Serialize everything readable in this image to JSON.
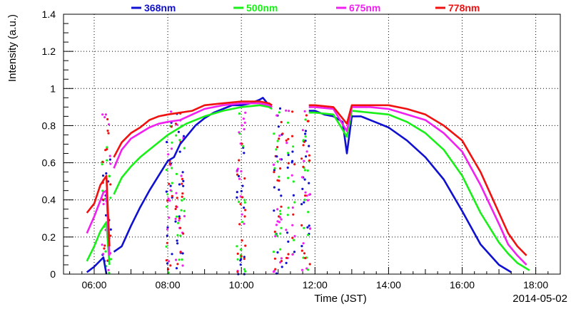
{
  "chart_data": {
    "type": "line",
    "xlabel": "Time (JST)",
    "ylabel": "Intensity (a.u.)",
    "date_label": "2014-05-02",
    "xlim": [
      "05:10",
      "18:40"
    ],
    "ylim": [
      0,
      1.4
    ],
    "grid": true,
    "legend_position": "top",
    "x_ticks": [
      "06:00",
      "08:00",
      "10:00",
      "12:00",
      "14:00",
      "16:00",
      "18:00"
    ],
    "y_ticks": [
      "0",
      "0.2",
      "0.4",
      "0.6",
      "0.8",
      "1",
      "1.2",
      "1.4"
    ],
    "series": [
      {
        "name": "368nm",
        "color": "#1010d0",
        "segments": [
          [
            [
              "05:48",
              0.01
            ],
            [
              "06:00",
              0.04
            ],
            [
              "06:15",
              0.09
            ],
            [
              "06:20",
              0.0
            ]
          ],
          [
            [
              "06:32",
              0.12
            ],
            [
              "06:45",
              0.15
            ],
            [
              "07:00",
              0.26
            ],
            [
              "07:15",
              0.36
            ],
            [
              "07:30",
              0.45
            ],
            [
              "07:45",
              0.53
            ],
            [
              "08:00",
              0.61
            ],
            [
              "08:10",
              0.63
            ],
            [
              "08:20",
              0.7
            ],
            [
              "08:30",
              0.74
            ],
            [
              "08:45",
              0.8
            ],
            [
              "09:00",
              0.84
            ],
            [
              "09:15",
              0.87
            ],
            [
              "09:30",
              0.89
            ],
            [
              "09:45",
              0.91
            ],
            [
              "10:00",
              0.91
            ],
            [
              "10:15",
              0.92
            ],
            [
              "10:30",
              0.94
            ],
            [
              "10:35",
              0.95
            ],
            [
              "10:45",
              0.91
            ],
            [
              "10:50",
              0.9
            ]
          ],
          [
            [
              "11:50",
              0.88
            ],
            [
              "12:00",
              0.88
            ],
            [
              "12:15",
              0.86
            ],
            [
              "12:30",
              0.85
            ],
            [
              "12:45",
              0.82
            ],
            [
              "12:52",
              0.65
            ],
            [
              "13:00",
              0.85
            ],
            [
              "13:15",
              0.85
            ],
            [
              "13:30",
              0.83
            ],
            [
              "14:00",
              0.79
            ],
            [
              "14:30",
              0.72
            ],
            [
              "15:00",
              0.63
            ],
            [
              "15:30",
              0.51
            ],
            [
              "16:00",
              0.34
            ],
            [
              "16:30",
              0.16
            ],
            [
              "17:00",
              0.05
            ],
            [
              "17:20",
              0.01
            ]
          ]
        ]
      },
      {
        "name": "500nm",
        "color": "#18f018",
        "segments": [
          [
            [
              "05:48",
              0.07
            ],
            [
              "06:00",
              0.15
            ],
            [
              "06:10",
              0.23
            ],
            [
              "06:20",
              0.28
            ],
            [
              "06:25",
              0.05
            ]
          ],
          [
            [
              "06:32",
              0.43
            ],
            [
              "06:45",
              0.52
            ],
            [
              "07:00",
              0.58
            ],
            [
              "07:15",
              0.63
            ],
            [
              "07:30",
              0.67
            ],
            [
              "07:45",
              0.71
            ],
            [
              "08:00",
              0.75
            ],
            [
              "08:10",
              0.77
            ],
            [
              "08:20",
              0.79
            ],
            [
              "08:30",
              0.81
            ],
            [
              "09:00",
              0.85
            ],
            [
              "09:30",
              0.88
            ],
            [
              "10:00",
              0.9
            ],
            [
              "10:30",
              0.91
            ],
            [
              "10:45",
              0.9
            ],
            [
              "10:50",
              0.89
            ]
          ],
          [
            [
              "11:50",
              0.87
            ],
            [
              "12:00",
              0.87
            ],
            [
              "12:30",
              0.86
            ],
            [
              "12:52",
              0.74
            ],
            [
              "13:00",
              0.88
            ],
            [
              "13:30",
              0.87
            ],
            [
              "14:00",
              0.86
            ],
            [
              "14:30",
              0.82
            ],
            [
              "15:00",
              0.76
            ],
            [
              "15:30",
              0.67
            ],
            [
              "16:00",
              0.53
            ],
            [
              "16:30",
              0.33
            ],
            [
              "17:00",
              0.17
            ],
            [
              "17:15",
              0.11
            ],
            [
              "17:30",
              0.06
            ],
            [
              "17:50",
              0.02
            ]
          ]
        ]
      },
      {
        "name": "675nm",
        "color": "#f020f0",
        "segments": [
          [
            [
              "05:48",
              0.22
            ],
            [
              "06:00",
              0.31
            ],
            [
              "06:15",
              0.44
            ],
            [
              "06:20",
              0.45
            ],
            [
              "06:25",
              0.1
            ]
          ],
          [
            [
              "06:32",
              0.57
            ],
            [
              "06:45",
              0.67
            ],
            [
              "07:00",
              0.73
            ],
            [
              "07:15",
              0.76
            ],
            [
              "07:30",
              0.79
            ],
            [
              "07:45",
              0.81
            ],
            [
              "08:00",
              0.82
            ],
            [
              "08:20",
              0.83
            ],
            [
              "08:40",
              0.86
            ],
            [
              "09:00",
              0.89
            ],
            [
              "09:30",
              0.91
            ],
            [
              "10:00",
              0.92
            ],
            [
              "10:30",
              0.92
            ],
            [
              "10:45",
              0.91
            ],
            [
              "10:50",
              0.9
            ]
          ],
          [
            [
              "11:50",
              0.9
            ],
            [
              "12:00",
              0.9
            ],
            [
              "12:30",
              0.89
            ],
            [
              "12:52",
              0.77
            ],
            [
              "13:00",
              0.9
            ],
            [
              "13:30",
              0.9
            ],
            [
              "14:00",
              0.89
            ],
            [
              "14:30",
              0.86
            ],
            [
              "15:00",
              0.83
            ],
            [
              "15:30",
              0.76
            ],
            [
              "16:00",
              0.66
            ],
            [
              "16:30",
              0.48
            ],
            [
              "17:00",
              0.27
            ],
            [
              "17:15",
              0.16
            ],
            [
              "17:30",
              0.1
            ],
            [
              "17:45",
              0.05
            ]
          ]
        ]
      },
      {
        "name": "778nm",
        "color": "#f01010",
        "segments": [
          [
            [
              "05:48",
              0.33
            ],
            [
              "06:00",
              0.38
            ],
            [
              "06:10",
              0.48
            ],
            [
              "06:20",
              0.53
            ],
            [
              "06:25",
              0.15
            ]
          ],
          [
            [
              "06:32",
              0.63
            ],
            [
              "06:45",
              0.71
            ],
            [
              "07:00",
              0.76
            ],
            [
              "07:15",
              0.79
            ],
            [
              "07:30",
              0.83
            ],
            [
              "07:45",
              0.85
            ],
            [
              "08:00",
              0.86
            ],
            [
              "08:20",
              0.87
            ],
            [
              "08:40",
              0.88
            ],
            [
              "09:00",
              0.91
            ],
            [
              "09:30",
              0.92
            ],
            [
              "10:00",
              0.93
            ],
            [
              "10:30",
              0.93
            ],
            [
              "10:45",
              0.92
            ],
            [
              "10:50",
              0.91
            ]
          ],
          [
            [
              "11:50",
              0.91
            ],
            [
              "12:00",
              0.91
            ],
            [
              "12:30",
              0.9
            ],
            [
              "12:52",
              0.81
            ],
            [
              "13:00",
              0.91
            ],
            [
              "13:30",
              0.91
            ],
            [
              "14:00",
              0.91
            ],
            [
              "14:30",
              0.89
            ],
            [
              "15:00",
              0.86
            ],
            [
              "15:30",
              0.8
            ],
            [
              "16:00",
              0.72
            ],
            [
              "16:30",
              0.55
            ],
            [
              "17:00",
              0.33
            ],
            [
              "17:15",
              0.22
            ],
            [
              "17:30",
              0.15
            ],
            [
              "17:45",
              0.1
            ]
          ]
        ]
      }
    ],
    "scatter_times": [
      "06:15",
      "06:20",
      "06:25",
      "08:00",
      "08:05",
      "08:15",
      "08:20",
      "08:25",
      "09:55",
      "10:00",
      "10:05",
      "10:55",
      "11:00",
      "11:05",
      "11:15",
      "11:25",
      "11:40",
      "11:45",
      "11:50"
    ]
  }
}
